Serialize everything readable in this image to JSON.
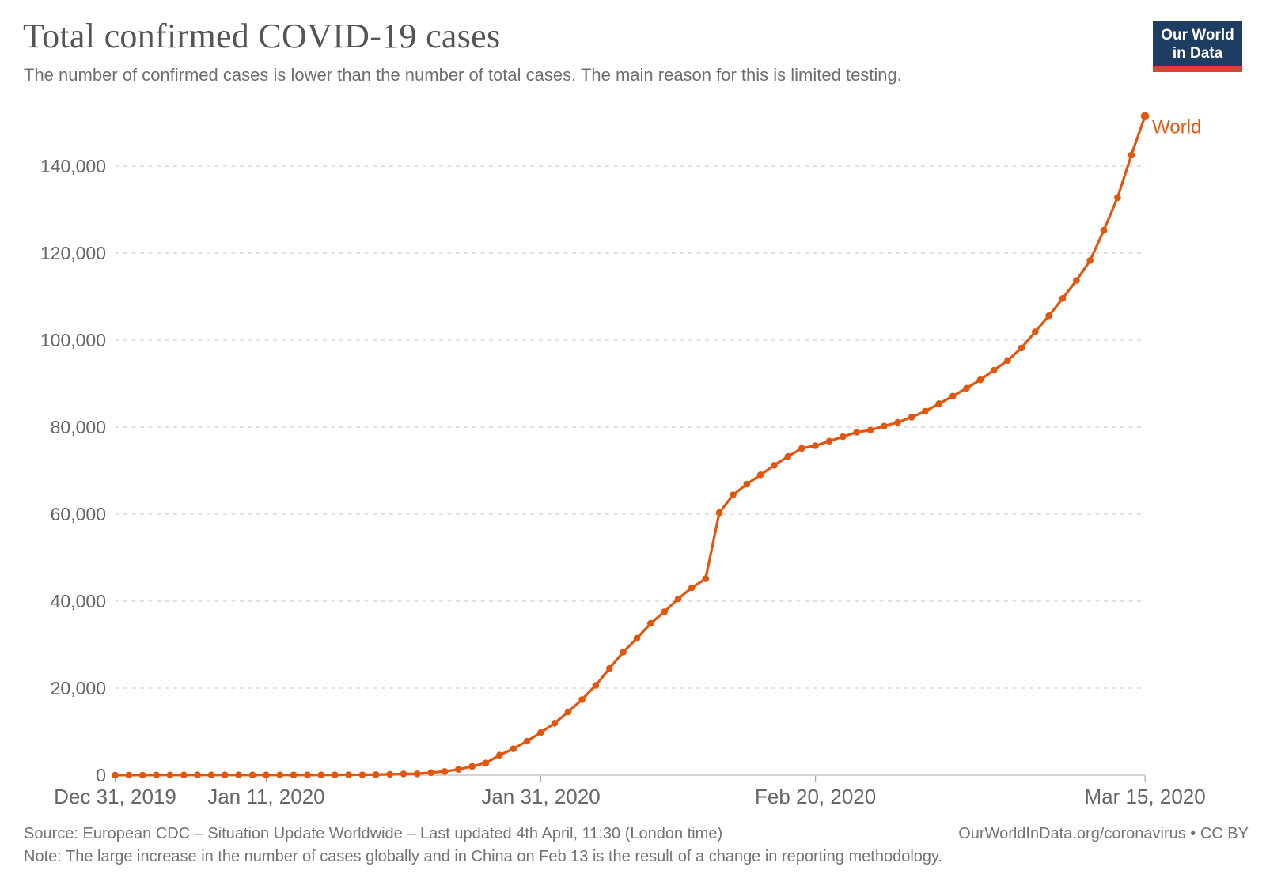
{
  "header": {
    "title": "Total confirmed COVID-19 cases",
    "subtitle": "The number of confirmed cases is lower than the number of total cases. The main reason for this is limited testing.",
    "logo": {
      "line1": "Our World",
      "line2": "in Data"
    }
  },
  "chart_data": {
    "type": "line",
    "title": "Total confirmed COVID-19 cases",
    "xlabel": "",
    "ylabel": "",
    "ylim": [
      0,
      151500
    ],
    "grid": "horizontal-dashed",
    "legend_position": "end-of-line-label",
    "y_ticks": [
      {
        "value": 0,
        "label": "0"
      },
      {
        "value": 20000,
        "label": "20,000"
      },
      {
        "value": 40000,
        "label": "40,000"
      },
      {
        "value": 60000,
        "label": "60,000"
      },
      {
        "value": 80000,
        "label": "80,000"
      },
      {
        "value": 100000,
        "label": "100,000"
      },
      {
        "value": 120000,
        "label": "120,000"
      },
      {
        "value": 140000,
        "label": "140,000"
      }
    ],
    "x_ticks": [
      {
        "index": 0,
        "label": "Dec 31, 2019"
      },
      {
        "index": 11,
        "label": "Jan 11, 2020"
      },
      {
        "index": 31,
        "label": "Jan 31, 2020"
      },
      {
        "index": 51,
        "label": "Feb 20, 2020"
      },
      {
        "index": 75,
        "label": "Mar 15, 2020"
      }
    ],
    "dates": [
      "Dec 31, 2019",
      "Jan 1, 2020",
      "Jan 2, 2020",
      "Jan 3, 2020",
      "Jan 4, 2020",
      "Jan 5, 2020",
      "Jan 6, 2020",
      "Jan 7, 2020",
      "Jan 8, 2020",
      "Jan 9, 2020",
      "Jan 10, 2020",
      "Jan 11, 2020",
      "Jan 12, 2020",
      "Jan 13, 2020",
      "Jan 14, 2020",
      "Jan 15, 2020",
      "Jan 16, 2020",
      "Jan 17, 2020",
      "Jan 18, 2020",
      "Jan 19, 2020",
      "Jan 20, 2020",
      "Jan 21, 2020",
      "Jan 22, 2020",
      "Jan 23, 2020",
      "Jan 24, 2020",
      "Jan 25, 2020",
      "Jan 26, 2020",
      "Jan 27, 2020",
      "Jan 28, 2020",
      "Jan 29, 2020",
      "Jan 30, 2020",
      "Jan 31, 2020",
      "Feb 1, 2020",
      "Feb 2, 2020",
      "Feb 3, 2020",
      "Feb 4, 2020",
      "Feb 5, 2020",
      "Feb 6, 2020",
      "Feb 7, 2020",
      "Feb 8, 2020",
      "Feb 9, 2020",
      "Feb 10, 2020",
      "Feb 11, 2020",
      "Feb 12, 2020",
      "Feb 13, 2020",
      "Feb 14, 2020",
      "Feb 15, 2020",
      "Feb 16, 2020",
      "Feb 17, 2020",
      "Feb 18, 2020",
      "Feb 19, 2020",
      "Feb 20, 2020",
      "Feb 21, 2020",
      "Feb 22, 2020",
      "Feb 23, 2020",
      "Feb 24, 2020",
      "Feb 25, 2020",
      "Feb 26, 2020",
      "Feb 27, 2020",
      "Feb 28, 2020",
      "Feb 29, 2020",
      "Mar 1, 2020",
      "Mar 2, 2020",
      "Mar 3, 2020",
      "Mar 4, 2020",
      "Mar 5, 2020",
      "Mar 6, 2020",
      "Mar 7, 2020",
      "Mar 8, 2020",
      "Mar 9, 2020",
      "Mar 10, 2020",
      "Mar 11, 2020",
      "Mar 12, 2020",
      "Mar 13, 2020",
      "Mar 14, 2020",
      "Mar 15, 2020"
    ],
    "series": [
      {
        "name": "World",
        "color": "#e2570f",
        "values": [
          27,
          27,
          27,
          44,
          44,
          59,
          59,
          59,
          59,
          59,
          59,
          59,
          59,
          60,
          61,
          61,
          66,
          83,
          88,
          136,
          206,
          282,
          314,
          581,
          846,
          1320,
          2014,
          2798,
          4593,
          6065,
          7818,
          9826,
          11953,
          14557,
          17391,
          20630,
          24554,
          28276,
          31481,
          34886,
          37558,
          40554,
          43103,
          45171,
          60328,
          64437,
          66885,
          69030,
          71224,
          73260,
          75136,
          75728,
          76769,
          77794,
          78811,
          79331,
          80239,
          81109,
          82294,
          83652,
          85403,
          87137,
          88948,
          90869,
          93090,
          95324,
          98192,
          101927,
          105592,
          109577,
          113702,
          118319,
          125260,
          132758,
          142534,
          151500
        ]
      }
    ]
  },
  "colors": {
    "accent_orange": "#e2570f",
    "logo_navy": "#1d3d63",
    "logo_red": "#dc3f34",
    "grid": "#d9d9d9",
    "axis": "#c6c6c6",
    "tick_mark": "#a5a5a5",
    "tick_label": "#666666",
    "title_gray": "#555555",
    "footer_gray": "#737373"
  },
  "footer": {
    "source": "Source: European CDC – Situation Update Worldwide – Last updated 4th April, 11:30 (London time)",
    "link": "OurWorldInData.org/coronavirus • CC BY",
    "note": "Note: The large increase in the number of cases globally and in China on Feb 13 is the result of a change in reporting methodology."
  }
}
